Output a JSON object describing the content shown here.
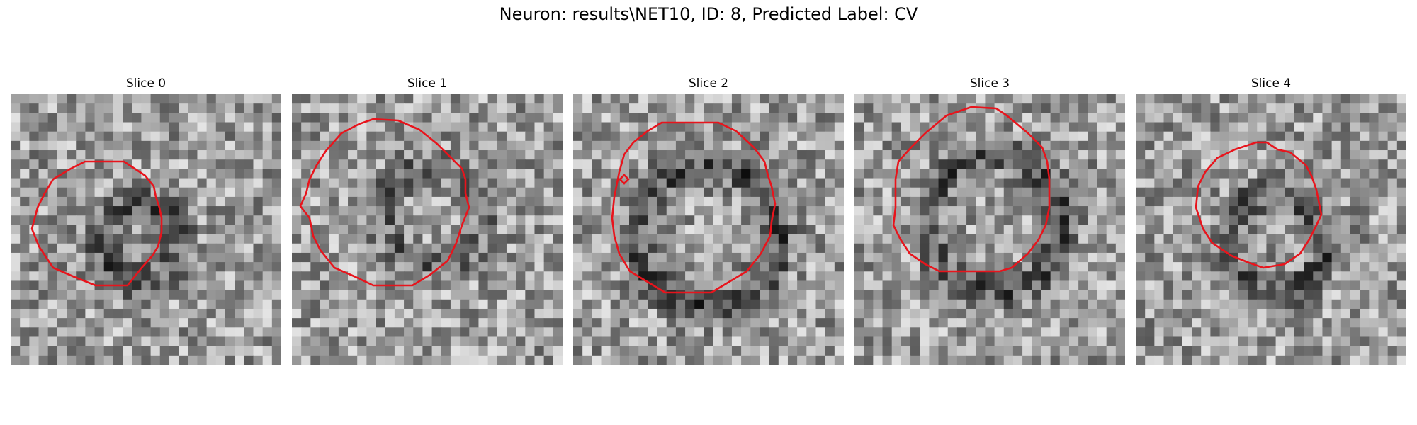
{
  "figure": {
    "title": "Neuron: results\\NET10, ID: 8, Predicted Label: CV",
    "contour_color": "#e8141c",
    "colormap": "grayscale"
  },
  "slices": [
    {
      "title": "Slice 0",
      "seed": 11,
      "blob": [
        0.48,
        0.55,
        0.14,
        -0.3,
        3
      ]
    },
    {
      "title": "Slice 1",
      "seed": 23,
      "blob": [
        0.52,
        0.45,
        0.18,
        -0.22,
        4
      ]
    },
    {
      "title": "Slice 2",
      "seed": 37,
      "blob": [
        0.5,
        0.52,
        0.26,
        -0.34,
        5
      ]
    },
    {
      "title": "Slice 3",
      "seed": 41,
      "blob": [
        0.52,
        0.48,
        0.25,
        -0.32,
        6
      ]
    },
    {
      "title": "Slice 4",
      "seed": 59,
      "blob": [
        0.52,
        0.55,
        0.18,
        -0.32,
        7
      ]
    }
  ]
}
